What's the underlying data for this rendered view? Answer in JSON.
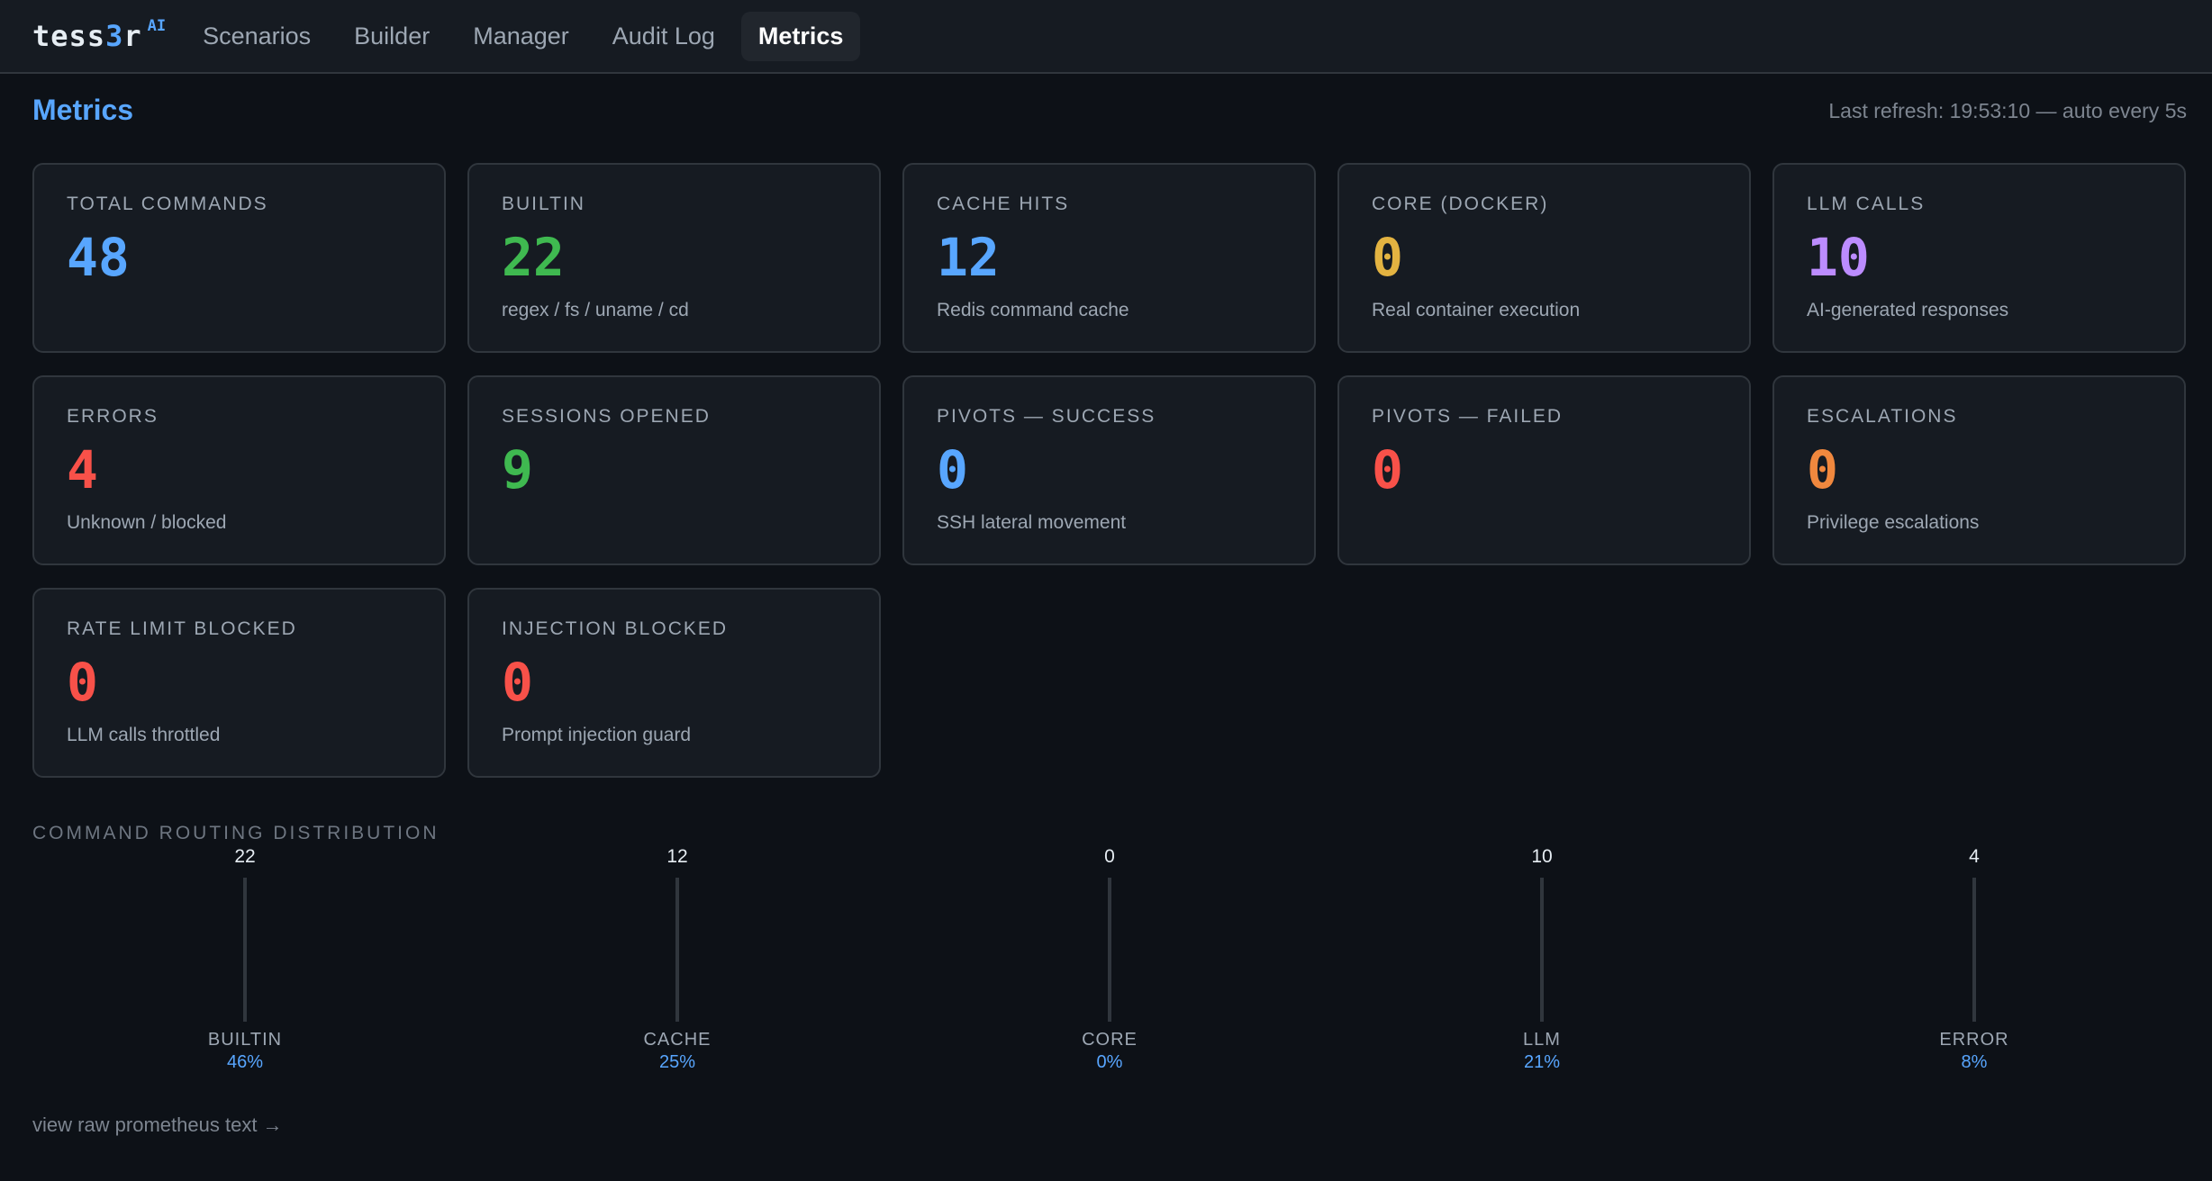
{
  "brand": {
    "name_start": "tess",
    "name_accent": "3",
    "name_end": "r",
    "sup": "AI"
  },
  "nav": [
    "Scenarios",
    "Builder",
    "Manager",
    "Audit Log",
    "Metrics"
  ],
  "nav_active": "Metrics",
  "page": {
    "title": "Metrics",
    "refresh": "Last refresh: 19:53:10 — auto every 5s"
  },
  "cards": [
    {
      "label": "Total Commands",
      "value": "48",
      "sub": "",
      "color": "#58a6ff"
    },
    {
      "label": "Builtin",
      "value": "22",
      "sub": "regex / fs / uname / cd",
      "color": "#3fb950"
    },
    {
      "label": "Cache Hits",
      "value": "12",
      "sub": "Redis command cache",
      "color": "#58a6ff"
    },
    {
      "label": "Core (Docker)",
      "value": "0",
      "sub": "Real container execution",
      "color": "#e3b341"
    },
    {
      "label": "LLM Calls",
      "value": "10",
      "sub": "AI-generated responses",
      "color": "#bc8cff"
    },
    {
      "label": "Errors",
      "value": "4",
      "sub": "Unknown / blocked",
      "color": "#f85149"
    },
    {
      "label": "Sessions Opened",
      "value": "9",
      "sub": "",
      "color": "#3fb950"
    },
    {
      "label": "Pivots — Success",
      "value": "0",
      "sub": "SSH lateral movement",
      "color": "#58a6ff"
    },
    {
      "label": "Pivots — Failed",
      "value": "0",
      "sub": "",
      "color": "#f85149"
    },
    {
      "label": "Escalations",
      "value": "0",
      "sub": "Privilege escalations",
      "color": "#f0883e"
    },
    {
      "label": "Rate Limit Blocked",
      "value": "0",
      "sub": "LLM calls throttled",
      "color": "#f85149"
    },
    {
      "label": "Injection Blocked",
      "value": "0",
      "sub": "Prompt injection guard",
      "color": "#f85149"
    }
  ],
  "distribution": {
    "title": "Command Routing Distribution",
    "items": [
      {
        "label": "BUILTIN",
        "count": "22",
        "pct": "46%"
      },
      {
        "label": "CACHE",
        "count": "12",
        "pct": "25%"
      },
      {
        "label": "CORE",
        "count": "0",
        "pct": "0%"
      },
      {
        "label": "LLM",
        "count": "10",
        "pct": "21%"
      },
      {
        "label": "ERROR",
        "count": "4",
        "pct": "8%"
      }
    ]
  },
  "footer": {
    "raw_link": "view raw prometheus text →"
  }
}
